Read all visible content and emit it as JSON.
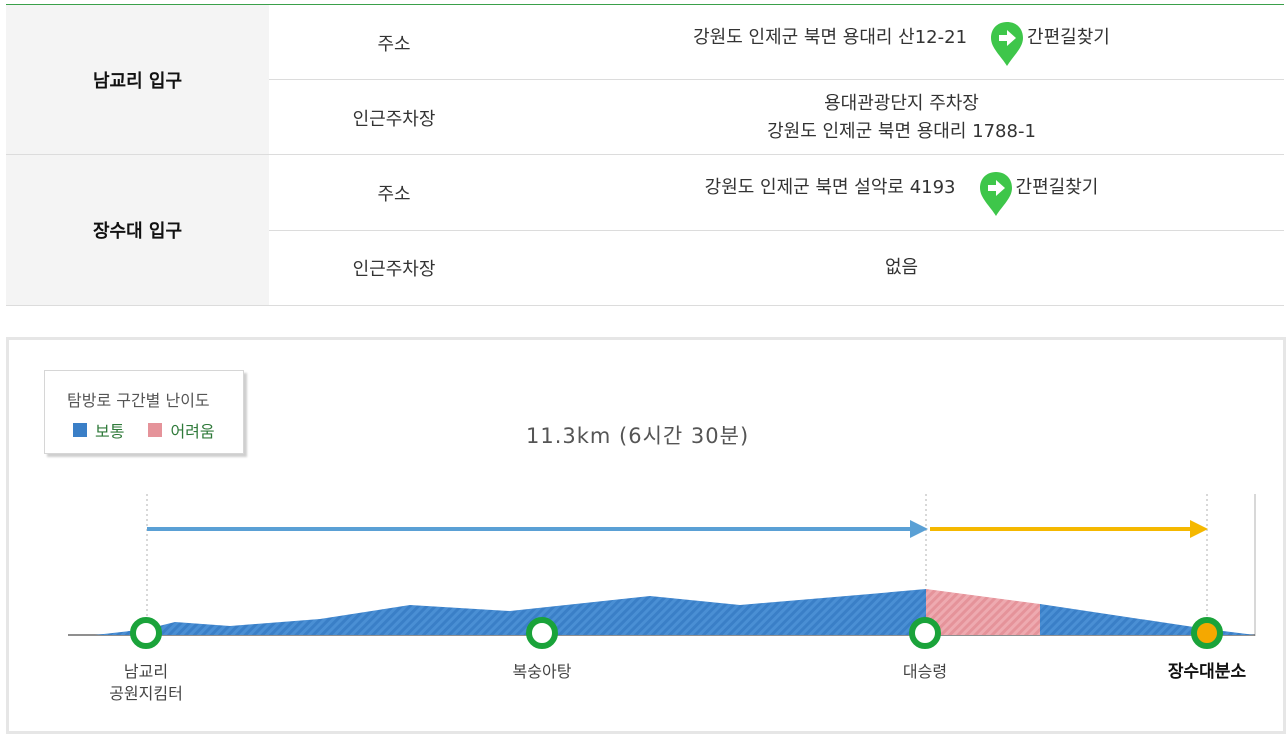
{
  "info_table": {
    "groups": [
      {
        "name": "남교리 입구",
        "address_label": "주소",
        "address": "강원도 인제군 북면 용대리 산12-21",
        "findway": "간편길찾기",
        "parking_label": "인근주차장",
        "parking_line1": "용대관광단지 주차장",
        "parking_line2": "강원도 인제군 북면 용대리 1788-1"
      },
      {
        "name": "장수대 입구",
        "address_label": "주소",
        "address": "강원도 인제군 북면 설악로 4193",
        "findway": "간편길찾기",
        "parking_label": "인근주차장",
        "parking_value": "없음"
      }
    ]
  },
  "trail": {
    "legend_title": "탐방로 구간별 난이도",
    "legend_normal": "보통",
    "legend_hard": "어려움",
    "total": "11.3km (6시간 30분)",
    "stops": [
      {
        "line1": "남교리",
        "line2": "공원지킴터"
      },
      {
        "line1": "복숭아탕"
      },
      {
        "line1": "대승령"
      },
      {
        "line1": "장수대분소"
      }
    ]
  },
  "colors": {
    "accent_green": "#3aa04a",
    "normal_blue": "#3a7fc7",
    "hard_pink": "#e5939a",
    "arrow_blue": "#5aa0d5",
    "arrow_yellow": "#f5b800",
    "node_green": "#1aa33a",
    "end_orange": "#f5a800",
    "pin_green": "#3ec64a"
  },
  "icons": {
    "findway": "location-pin-arrow-icon"
  }
}
